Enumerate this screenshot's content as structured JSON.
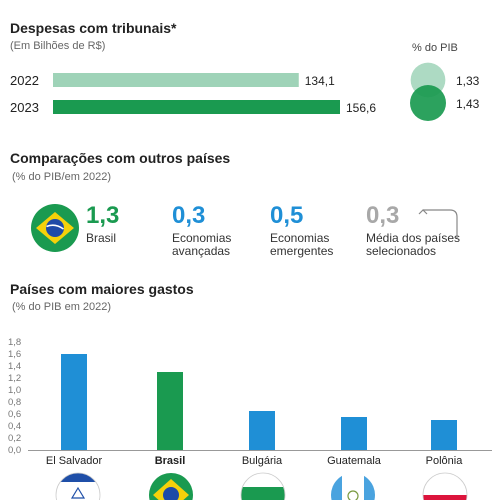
{
  "section1": {
    "title": "Despesas com tribunais*",
    "subtitle": "(Em Bilhões de R$)",
    "pib_header": "% do PIB",
    "rows": [
      {
        "year": "2022",
        "value": 134.1,
        "label": "134,1",
        "pib": "1,33",
        "pib_value": 1.33
      },
      {
        "year": "2023",
        "value": 156.6,
        "label": "156,6",
        "pib": "1,43",
        "pib_value": 1.43
      }
    ],
    "colors": {
      "light": "#9fd3b8",
      "dark": "#1a9a50"
    }
  },
  "section2": {
    "title": "Comparações com outros países",
    "subtitle": "(% do PIB/em 2022)",
    "items": [
      {
        "value": "1,3",
        "label_lines": [
          "Brasil"
        ],
        "color": "#1a9a50"
      },
      {
        "value": "0,3",
        "label_lines": [
          "Economias",
          "avançadas"
        ],
        "color": "#1f8fd6"
      },
      {
        "value": "0,5",
        "label_lines": [
          "Economias",
          "emergentes"
        ],
        "color": "#1f8fd6"
      },
      {
        "value": "0,3",
        "label_lines": [
          "Média dos países",
          "selecionados"
        ],
        "color": "#a8a8a8"
      }
    ]
  },
  "chart_data": {
    "type": "bar",
    "title": "Países com maiores gastos",
    "subtitle": "(% do PIB em 2022)",
    "categories": [
      "El Salvador",
      "Brasil",
      "Bulgária",
      "Guatemala",
      "Polônia"
    ],
    "values": [
      1.6,
      1.3,
      0.65,
      0.55,
      0.5
    ],
    "highlight": "Brasil",
    "ylim": [
      0,
      1.8
    ],
    "yticks": [
      "0,0",
      "0,2",
      "0,4",
      "0,6",
      "0,8",
      "1,0",
      "1,2",
      "1,4",
      "1,6",
      "1,8"
    ],
    "colors": {
      "Brasil": "#1a9a50",
      "default": "#1f8fd6"
    },
    "grid": false
  }
}
